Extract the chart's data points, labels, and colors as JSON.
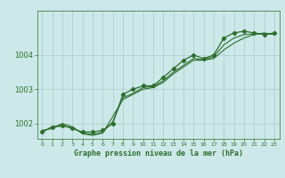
{
  "title": "Graphe pression niveau de la mer (hPa)",
  "background_color": "#cce8e8",
  "plot_bg_color": "#cce8e8",
  "grid_color": "#aacccc",
  "line_color": "#2d6e2d",
  "marker_color": "#2d6e2d",
  "xlim": [
    -0.5,
    23.5
  ],
  "ylim": [
    1001.55,
    1005.3
  ],
  "yticks": [
    1002,
    1003,
    1004
  ],
  "xticks": [
    0,
    1,
    2,
    3,
    4,
    5,
    6,
    7,
    8,
    9,
    10,
    11,
    12,
    13,
    14,
    15,
    16,
    17,
    18,
    19,
    20,
    21,
    22,
    23
  ],
  "series1": [
    1001.75,
    1001.9,
    1001.95,
    1001.85,
    1001.75,
    1001.75,
    1001.8,
    1002.0,
    1002.85,
    1003.0,
    1003.1,
    1003.1,
    1003.35,
    1003.6,
    1003.85,
    1004.0,
    1003.9,
    1004.0,
    1004.5,
    1004.65,
    1004.7,
    1004.65,
    1004.6,
    1004.65
  ],
  "series2": [
    1001.8,
    1001.85,
    1002.0,
    1001.9,
    1001.7,
    1001.65,
    1001.72,
    1002.2,
    1002.7,
    1002.85,
    1003.0,
    1003.05,
    1003.2,
    1003.45,
    1003.65,
    1003.85,
    1003.85,
    1003.9,
    1004.15,
    1004.35,
    1004.5,
    1004.6,
    1004.65,
    1004.6
  ],
  "series3": [
    1001.75,
    1001.9,
    1001.92,
    1001.88,
    1001.72,
    1001.68,
    1001.75,
    1002.05,
    1002.75,
    1002.88,
    1003.05,
    1003.08,
    1003.25,
    1003.5,
    1003.7,
    1003.9,
    1003.87,
    1003.95,
    1004.3,
    1004.5,
    1004.6,
    1004.62,
    1004.62,
    1004.62
  ],
  "figsize": [
    3.2,
    2.0
  ],
  "dpi": 100
}
